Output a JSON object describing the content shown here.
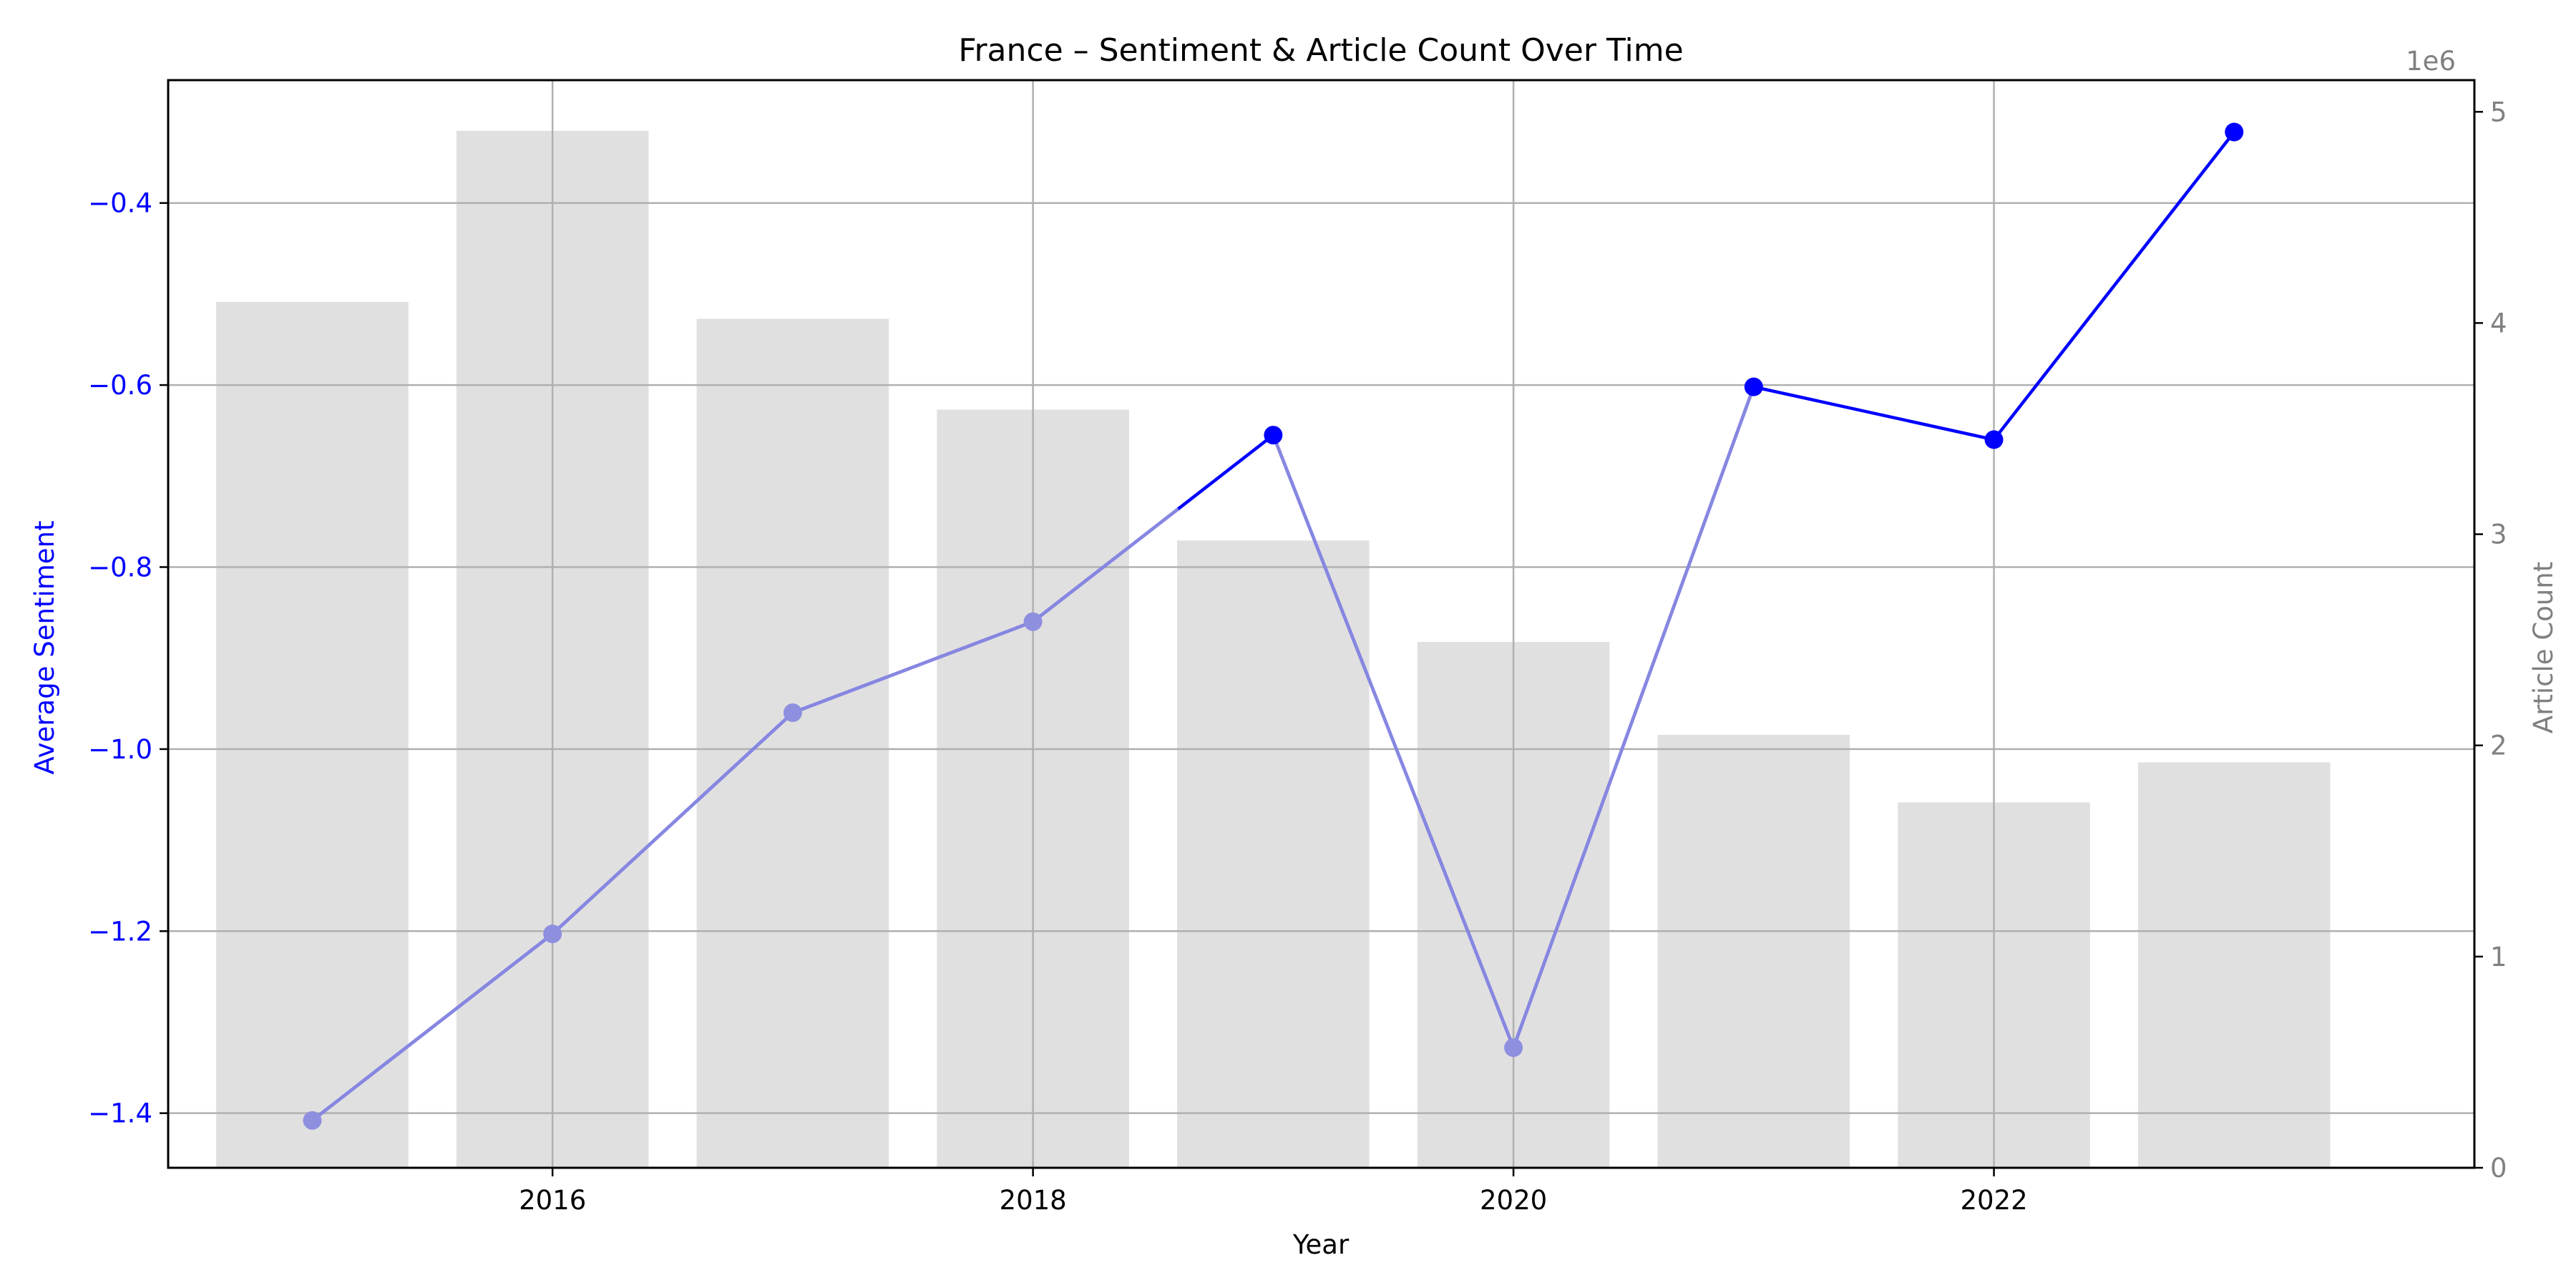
{
  "chart_data": {
    "type": "bar+line",
    "title": "France – Sentiment & Article Count Over Time",
    "xlabel": "Year",
    "ylabel_left": "Average Sentiment",
    "ylabel_right": "Article Count",
    "right_axis_offset_label": "1e6",
    "x": [
      2015,
      2016,
      2017,
      2018,
      2019,
      2020,
      2021,
      2022,
      2023
    ],
    "x_ticks": [
      2016,
      2018,
      2020,
      2022
    ],
    "xlim": [
      2014.4,
      2024.0
    ],
    "ylim_left": [
      -1.46,
      -0.265
    ],
    "y_ticks_left": [
      -1.4,
      -1.2,
      -1.0,
      -0.8,
      -0.6,
      -0.4
    ],
    "ylim_right": [
      0,
      5.15
    ],
    "y_ticks_right": [
      0,
      1,
      2,
      3,
      4,
      5
    ],
    "grid": true,
    "series": [
      {
        "kind": "bar",
        "axis": "right",
        "values_millions": [
          4.1,
          4.91,
          4.02,
          3.59,
          2.97,
          2.49,
          2.05,
          1.73,
          1.92
        ],
        "color": "#e0e0e0"
      },
      {
        "kind": "line",
        "axis": "left",
        "values": [
          -1.408,
          -1.203,
          -0.96,
          -0.86,
          -0.655,
          -1.328,
          -0.602,
          -0.66,
          -0.322
        ],
        "color": "#0000ff"
      }
    ],
    "colors": {
      "left_axis": "#0000ff",
      "right_axis": "#808080",
      "grid": "#b0b0b0",
      "bar": "#e0e0e0",
      "line": "#0000ff",
      "line_faded": "#8f8fe0"
    }
  }
}
